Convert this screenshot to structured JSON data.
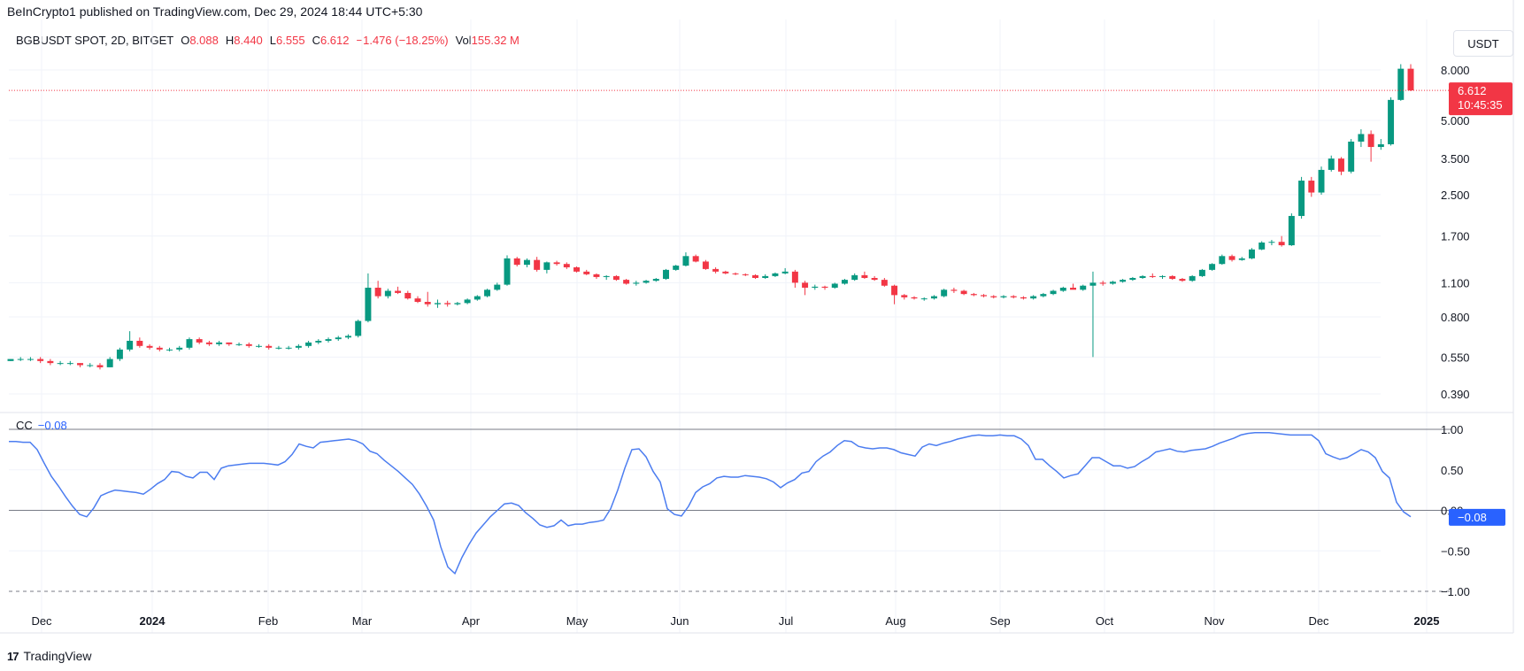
{
  "header": {
    "published": "BeInCrypto1 published on TradingView.com, Dec 29, 2024 18:44 UTC+5:30"
  },
  "legend": {
    "symbol": "BGBUSDT SPOT, 2D, BITGET",
    "o_label": "O",
    "o": "8.088",
    "h_label": "H",
    "h": "8.440",
    "l_label": "L",
    "l": "6.555",
    "c_label": "C",
    "c": "6.612",
    "change": "−1.476 (−18.25%)",
    "vol_label": "Vol",
    "vol": "155.32 M"
  },
  "currency_button": "USDT",
  "last_price": {
    "value": "6.612",
    "countdown": "10:45:35"
  },
  "indicator": {
    "name": "CC",
    "value": "−0.08",
    "badge": "−0.08"
  },
  "footer": {
    "brand": "TradingView",
    "mark": "17"
  },
  "colors": {
    "up": "#089981",
    "down": "#f23645",
    "cc_line": "#4c7df0",
    "badge": "#2962ff"
  },
  "chart_data": [
    {
      "type": "candlestick",
      "title": "BGBUSDT SPOT, 2D, BITGET",
      "y_scale": "log",
      "y_ticks": [
        8.0,
        5.0,
        3.5,
        2.5,
        1.7,
        1.1,
        0.8,
        0.55,
        0.39
      ],
      "y_tick_labels": [
        "8.000",
        "5.000",
        "3.500",
        "2.500",
        "1.700",
        "1.100",
        "0.800",
        "0.550",
        "0.390"
      ],
      "x_tick_labels": [
        "Dec",
        "2024",
        "Feb",
        "Mar",
        "Apr",
        "May",
        "Jun",
        "Jul",
        "Aug",
        "Sep",
        "Oct",
        "Nov",
        "Dec",
        "2025"
      ],
      "last_close": 6.612,
      "candles": [
        [
          0.53,
          0.54,
          0.53,
          0.54
        ],
        [
          0.54,
          0.55,
          0.53,
          0.54
        ],
        [
          0.54,
          0.55,
          0.53,
          0.54
        ],
        [
          0.54,
          0.55,
          0.52,
          0.53
        ],
        [
          0.53,
          0.54,
          0.51,
          0.52
        ],
        [
          0.52,
          0.53,
          0.51,
          0.52
        ],
        [
          0.52,
          0.53,
          0.51,
          0.52
        ],
        [
          0.52,
          0.52,
          0.5,
          0.51
        ],
        [
          0.51,
          0.52,
          0.5,
          0.51
        ],
        [
          0.51,
          0.52,
          0.49,
          0.5
        ],
        [
          0.5,
          0.55,
          0.5,
          0.54
        ],
        [
          0.54,
          0.6,
          0.53,
          0.59
        ],
        [
          0.59,
          0.7,
          0.58,
          0.64
        ],
        [
          0.64,
          0.66,
          0.6,
          0.61
        ],
        [
          0.61,
          0.62,
          0.59,
          0.6
        ],
        [
          0.6,
          0.61,
          0.58,
          0.59
        ],
        [
          0.59,
          0.6,
          0.58,
          0.59
        ],
        [
          0.59,
          0.61,
          0.58,
          0.6
        ],
        [
          0.6,
          0.66,
          0.59,
          0.65
        ],
        [
          0.65,
          0.66,
          0.62,
          0.63
        ],
        [
          0.63,
          0.64,
          0.61,
          0.62
        ],
        [
          0.62,
          0.64,
          0.61,
          0.63
        ],
        [
          0.63,
          0.63,
          0.61,
          0.62
        ],
        [
          0.62,
          0.63,
          0.61,
          0.62
        ],
        [
          0.62,
          0.63,
          0.6,
          0.61
        ],
        [
          0.61,
          0.62,
          0.6,
          0.61
        ],
        [
          0.61,
          0.62,
          0.59,
          0.6
        ],
        [
          0.6,
          0.61,
          0.59,
          0.6
        ],
        [
          0.6,
          0.61,
          0.59,
          0.6
        ],
        [
          0.6,
          0.62,
          0.59,
          0.61
        ],
        [
          0.61,
          0.64,
          0.6,
          0.63
        ],
        [
          0.63,
          0.65,
          0.62,
          0.64
        ],
        [
          0.64,
          0.66,
          0.63,
          0.65
        ],
        [
          0.65,
          0.67,
          0.64,
          0.66
        ],
        [
          0.66,
          0.68,
          0.65,
          0.67
        ],
        [
          0.67,
          0.78,
          0.66,
          0.77
        ],
        [
          0.77,
          1.2,
          0.76,
          1.05
        ],
        [
          1.05,
          1.12,
          0.95,
          0.97
        ],
        [
          0.97,
          1.04,
          0.95,
          1.02
        ],
        [
          1.02,
          1.06,
          0.99,
          1.0
        ],
        [
          1.0,
          1.02,
          0.94,
          0.95
        ],
        [
          0.95,
          0.97,
          0.91,
          0.92
        ],
        [
          0.92,
          1.01,
          0.88,
          0.9
        ],
        [
          0.9,
          0.94,
          0.87,
          0.91
        ],
        [
          0.91,
          0.93,
          0.88,
          0.9
        ],
        [
          0.9,
          0.92,
          0.89,
          0.91
        ],
        [
          0.91,
          0.95,
          0.9,
          0.94
        ],
        [
          0.94,
          0.98,
          0.93,
          0.97
        ],
        [
          0.97,
          1.04,
          0.96,
          1.03
        ],
        [
          1.03,
          1.1,
          1.02,
          1.08
        ],
        [
          1.08,
          1.42,
          1.07,
          1.38
        ],
        [
          1.38,
          1.4,
          1.28,
          1.3
        ],
        [
          1.3,
          1.38,
          1.27,
          1.36
        ],
        [
          1.36,
          1.4,
          1.22,
          1.24
        ],
        [
          1.24,
          1.34,
          1.2,
          1.33
        ],
        [
          1.33,
          1.35,
          1.29,
          1.31
        ],
        [
          1.31,
          1.33,
          1.25,
          1.27
        ],
        [
          1.27,
          1.28,
          1.21,
          1.22
        ],
        [
          1.22,
          1.24,
          1.18,
          1.19
        ],
        [
          1.19,
          1.2,
          1.14,
          1.16
        ],
        [
          1.16,
          1.18,
          1.13,
          1.17
        ],
        [
          1.17,
          1.18,
          1.12,
          1.13
        ],
        [
          1.13,
          1.14,
          1.08,
          1.09
        ],
        [
          1.09,
          1.12,
          1.07,
          1.1
        ],
        [
          1.1,
          1.13,
          1.09,
          1.12
        ],
        [
          1.12,
          1.15,
          1.11,
          1.14
        ],
        [
          1.14,
          1.25,
          1.13,
          1.24
        ],
        [
          1.24,
          1.3,
          1.23,
          1.29
        ],
        [
          1.29,
          1.46,
          1.28,
          1.41
        ],
        [
          1.41,
          1.43,
          1.33,
          1.34
        ],
        [
          1.34,
          1.36,
          1.24,
          1.25
        ],
        [
          1.25,
          1.27,
          1.2,
          1.22
        ],
        [
          1.22,
          1.23,
          1.19,
          1.2
        ],
        [
          1.2,
          1.21,
          1.18,
          1.19
        ],
        [
          1.19,
          1.2,
          1.17,
          1.18
        ],
        [
          1.18,
          1.19,
          1.14,
          1.15
        ],
        [
          1.15,
          1.19,
          1.14,
          1.17
        ],
        [
          1.17,
          1.21,
          1.16,
          1.2
        ],
        [
          1.2,
          1.26,
          1.19,
          1.22
        ],
        [
          1.22,
          1.24,
          1.05,
          1.1
        ],
        [
          1.1,
          1.12,
          0.98,
          1.05
        ],
        [
          1.05,
          1.08,
          1.03,
          1.06
        ],
        [
          1.06,
          1.07,
          1.03,
          1.05
        ],
        [
          1.05,
          1.1,
          1.04,
          1.09
        ],
        [
          1.09,
          1.14,
          1.08,
          1.13
        ],
        [
          1.13,
          1.2,
          1.12,
          1.18
        ],
        [
          1.18,
          1.22,
          1.14,
          1.15
        ],
        [
          1.15,
          1.17,
          1.12,
          1.13
        ],
        [
          1.13,
          1.15,
          1.06,
          1.07
        ],
        [
          1.07,
          1.08,
          0.9,
          0.98
        ],
        [
          0.98,
          0.99,
          0.94,
          0.96
        ],
        [
          0.96,
          0.97,
          0.94,
          0.95
        ],
        [
          0.95,
          0.96,
          0.93,
          0.95
        ],
        [
          0.95,
          0.98,
          0.94,
          0.97
        ],
        [
          0.97,
          1.04,
          0.96,
          1.03
        ],
        [
          1.03,
          1.05,
          1.0,
          1.02
        ],
        [
          1.02,
          1.03,
          0.98,
          0.99
        ],
        [
          0.99,
          1.0,
          0.97,
          0.98
        ],
        [
          0.98,
          0.99,
          0.96,
          0.97
        ],
        [
          0.97,
          0.98,
          0.95,
          0.96
        ],
        [
          0.96,
          0.98,
          0.95,
          0.97
        ],
        [
          0.97,
          0.98,
          0.95,
          0.96
        ],
        [
          0.96,
          0.97,
          0.94,
          0.95
        ],
        [
          0.95,
          0.98,
          0.94,
          0.97
        ],
        [
          0.97,
          1.0,
          0.96,
          0.99
        ],
        [
          0.99,
          1.03,
          0.98,
          1.02
        ],
        [
          1.02,
          1.06,
          1.01,
          1.05
        ],
        [
          1.05,
          1.09,
          1.04,
          1.03
        ],
        [
          1.03,
          1.08,
          1.02,
          1.07
        ],
        [
          1.07,
          1.22,
          0.55,
          1.1
        ],
        [
          1.1,
          1.12,
          1.07,
          1.09
        ],
        [
          1.09,
          1.12,
          1.08,
          1.11
        ],
        [
          1.11,
          1.14,
          1.1,
          1.13
        ],
        [
          1.13,
          1.16,
          1.12,
          1.15
        ],
        [
          1.15,
          1.18,
          1.14,
          1.17
        ],
        [
          1.17,
          1.2,
          1.15,
          1.16
        ],
        [
          1.16,
          1.18,
          1.14,
          1.17
        ],
        [
          1.17,
          1.18,
          1.13,
          1.14
        ],
        [
          1.14,
          1.15,
          1.11,
          1.12
        ],
        [
          1.12,
          1.18,
          1.11,
          1.17
        ],
        [
          1.17,
          1.25,
          1.16,
          1.24
        ],
        [
          1.24,
          1.32,
          1.23,
          1.31
        ],
        [
          1.31,
          1.43,
          1.3,
          1.41
        ],
        [
          1.41,
          1.43,
          1.34,
          1.36
        ],
        [
          1.36,
          1.4,
          1.35,
          1.38
        ],
        [
          1.38,
          1.52,
          1.37,
          1.5
        ],
        [
          1.5,
          1.62,
          1.49,
          1.6
        ],
        [
          1.6,
          1.64,
          1.56,
          1.61
        ],
        [
          1.61,
          1.7,
          1.54,
          1.56
        ],
        [
          1.56,
          2.1,
          1.55,
          2.05
        ],
        [
          2.05,
          2.95,
          2.0,
          2.85
        ],
        [
          2.85,
          2.95,
          2.45,
          2.55
        ],
        [
          2.55,
          3.25,
          2.5,
          3.15
        ],
        [
          3.15,
          3.6,
          3.1,
          3.5
        ],
        [
          3.5,
          3.55,
          3.0,
          3.1
        ],
        [
          3.1,
          4.2,
          3.05,
          4.1
        ],
        [
          4.1,
          4.6,
          3.9,
          4.4
        ],
        [
          4.4,
          4.55,
          3.4,
          3.9
        ],
        [
          3.9,
          4.2,
          3.8,
          4.0
        ],
        [
          4.0,
          6.2,
          3.95,
          6.05
        ],
        [
          6.05,
          8.44,
          6.0,
          8.09
        ],
        [
          8.09,
          8.44,
          6.56,
          6.61
        ]
      ]
    },
    {
      "type": "line",
      "title": "CC",
      "name": "CC",
      "ylim": [
        -1.0,
        1.0
      ],
      "y_ticks": [
        1.0,
        0.5,
        0.0,
        -0.5,
        -1.0
      ],
      "y_tick_labels": [
        "1.00",
        "0.50",
        "0.00",
        "−0.50",
        "−1.00"
      ],
      "last_value": -0.08,
      "values": [
        0.85,
        0.85,
        0.84,
        0.84,
        0.75,
        0.58,
        0.42,
        0.3,
        0.17,
        0.05,
        -0.05,
        -0.08,
        0.03,
        0.18,
        0.22,
        0.25,
        0.24,
        0.23,
        0.22,
        0.2,
        0.26,
        0.33,
        0.38,
        0.48,
        0.47,
        0.42,
        0.4,
        0.47,
        0.47,
        0.38,
        0.52,
        0.55,
        0.56,
        0.57,
        0.58,
        0.58,
        0.58,
        0.57,
        0.56,
        0.6,
        0.69,
        0.82,
        0.79,
        0.77,
        0.84,
        0.85,
        0.86,
        0.87,
        0.88,
        0.86,
        0.82,
        0.73,
        0.7,
        0.62,
        0.55,
        0.48,
        0.4,
        0.32,
        0.2,
        0.05,
        -0.12,
        -0.45,
        -0.7,
        -0.78,
        -0.58,
        -0.42,
        -0.28,
        -0.18,
        -0.08,
        0.0,
        0.08,
        0.09,
        0.06,
        -0.03,
        -0.1,
        -0.18,
        -0.21,
        -0.19,
        -0.12,
        -0.19,
        -0.17,
        -0.17,
        -0.15,
        -0.14,
        -0.12,
        0.02,
        0.25,
        0.52,
        0.75,
        0.76,
        0.66,
        0.48,
        0.35,
        0.02,
        -0.05,
        -0.07,
        0.05,
        0.22,
        0.29,
        0.33,
        0.4,
        0.42,
        0.41,
        0.41,
        0.43,
        0.42,
        0.41,
        0.39,
        0.35,
        0.28,
        0.34,
        0.38,
        0.46,
        0.48,
        0.6,
        0.67,
        0.72,
        0.8,
        0.86,
        0.85,
        0.79,
        0.77,
        0.76,
        0.77,
        0.77,
        0.75,
        0.71,
        0.69,
        0.67,
        0.78,
        0.82,
        0.8,
        0.83,
        0.85,
        0.88,
        0.9,
        0.92,
        0.93,
        0.92,
        0.92,
        0.93,
        0.92,
        0.92,
        0.88,
        0.8,
        0.63,
        0.63,
        0.55,
        0.48,
        0.4,
        0.43,
        0.45,
        0.55,
        0.65,
        0.65,
        0.6,
        0.55,
        0.55,
        0.52,
        0.54,
        0.6,
        0.65,
        0.72,
        0.74,
        0.76,
        0.73,
        0.72,
        0.74,
        0.75,
        0.76,
        0.79,
        0.83,
        0.86,
        0.89,
        0.93,
        0.95,
        0.96,
        0.96,
        0.96,
        0.95,
        0.94,
        0.93,
        0.93,
        0.93,
        0.93,
        0.86,
        0.7,
        0.66,
        0.63,
        0.65,
        0.7,
        0.75,
        0.72,
        0.65,
        0.48,
        0.4,
        0.1,
        -0.02,
        -0.08
      ]
    }
  ]
}
